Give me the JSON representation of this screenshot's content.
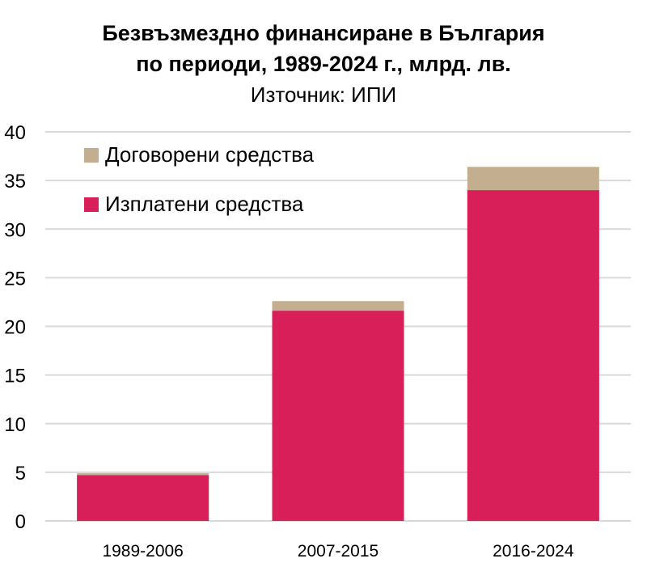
{
  "chart_data": {
    "type": "bar",
    "title": "Безвъзмездно финансиране в България",
    "subtitle": "по периоди, 1989-2024 г., млрд. лв.",
    "source": "Източник: ИПИ",
    "categories": [
      "1989-2006",
      "2007-2015",
      "2016-2024"
    ],
    "series": [
      {
        "name": "Договорени средства",
        "values": [
          4.9,
          22.6,
          36.4
        ],
        "color": "#c4ae90"
      },
      {
        "name": "Изплатени средства",
        "values": [
          4.7,
          21.6,
          34.0
        ],
        "color": "#d91f5a"
      }
    ],
    "ylim": [
      0,
      40
    ],
    "yticks": [
      0,
      5,
      10,
      15,
      20,
      25,
      30,
      35,
      40
    ],
    "grid": true,
    "legend": "top-left",
    "xlabel": "",
    "ylabel": ""
  }
}
